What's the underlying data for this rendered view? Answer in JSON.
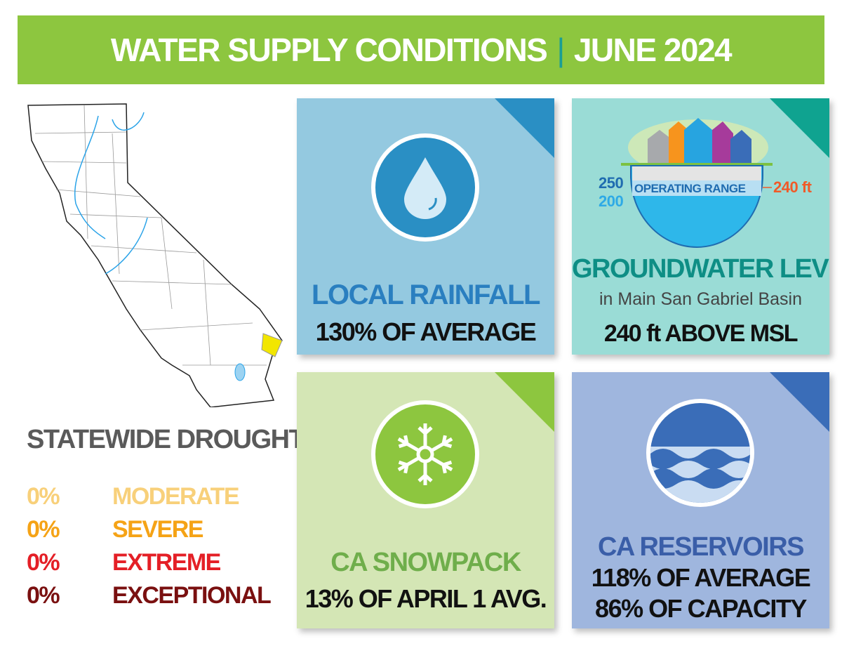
{
  "header": {
    "title": "WATER SUPPLY CONDITIONS",
    "separator": "|",
    "date": "JUNE 2024"
  },
  "rainfall": {
    "title": "LOCAL RAINFALL",
    "value": "130% OF AVERAGE",
    "icon": "water-drop-icon"
  },
  "groundwater": {
    "title": "GROUNDWATER LEVEL",
    "subtitle": "in Main San Gabriel Basin",
    "value": "240 ft ABOVE MSL",
    "graphic": {
      "upper": "250",
      "lower": "200",
      "label": "OPERATING RANGE",
      "current": "240 ft"
    }
  },
  "snowpack": {
    "title": "CA SNOWPACK",
    "value": "13% OF APRIL 1 AVG.",
    "icon": "snowflake-icon"
  },
  "reservoirs": {
    "title": "CA RESERVOIRS",
    "value1": "118% OF AVERAGE",
    "value2": "86% OF CAPACITY",
    "icon": "waves-icon"
  },
  "drought": {
    "title": "STATEWIDE DROUGHT",
    "levels": [
      {
        "pct": "0%",
        "label": "MODERATE",
        "color": "#f8d07a"
      },
      {
        "pct": "0%",
        "label": "SEVERE",
        "color": "#f5a316"
      },
      {
        "pct": "0%",
        "label": "EXTREME",
        "color": "#e41f26"
      },
      {
        "pct": "0%",
        "label": "EXCEPTIONAL",
        "color": "#7a1010"
      }
    ]
  }
}
